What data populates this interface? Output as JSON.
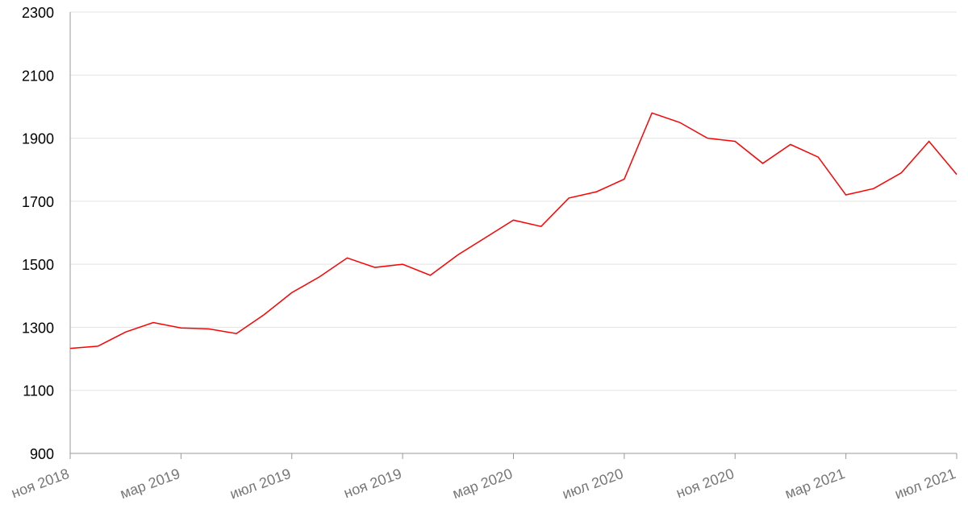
{
  "chart_data": {
    "type": "line",
    "x": [
      "2018-11",
      "2018-12",
      "2019-01",
      "2019-02",
      "2019-03",
      "2019-04",
      "2019-05",
      "2019-06",
      "2019-07",
      "2019-08",
      "2019-09",
      "2019-10",
      "2019-11",
      "2019-12",
      "2020-01",
      "2020-02",
      "2020-03",
      "2020-04",
      "2020-05",
      "2020-06",
      "2020-07",
      "2020-08",
      "2020-09",
      "2020-10",
      "2020-11",
      "2020-12",
      "2021-01",
      "2021-02",
      "2021-03",
      "2021-04",
      "2021-05",
      "2021-06",
      "2021-07"
    ],
    "series": [
      {
        "color": "#ff0000",
        "values": [
          1233,
          1240,
          1285,
          1315,
          1298,
          1295,
          1280,
          1340,
          1410,
          1460,
          1520,
          1490,
          1500,
          1465,
          1530,
          1585,
          1640,
          1620,
          1710,
          1730,
          1770,
          1980,
          1950,
          1900,
          1890,
          1820,
          1880,
          1840,
          1720,
          1740,
          1790,
          1890,
          1785
        ]
      }
    ],
    "ylim": [
      900,
      2300
    ],
    "yticks": [
      900,
      1100,
      1300,
      1500,
      1700,
      1900,
      2100,
      2300
    ],
    "xticks": [
      {
        "value": "2018-11",
        "label": "ноя 2018"
      },
      {
        "value": "2019-03",
        "label": "мар 2019"
      },
      {
        "value": "2019-07",
        "label": "июл 2019"
      },
      {
        "value": "2019-11",
        "label": "ноя 2019"
      },
      {
        "value": "2020-03",
        "label": "мар 2020"
      },
      {
        "value": "2020-07",
        "label": "июл 2020"
      },
      {
        "value": "2020-11",
        "label": "ноя 2020"
      },
      {
        "value": "2021-03",
        "label": "мар 2021"
      },
      {
        "value": "2021-07",
        "label": "июл 2021"
      }
    ],
    "grid": true
  }
}
